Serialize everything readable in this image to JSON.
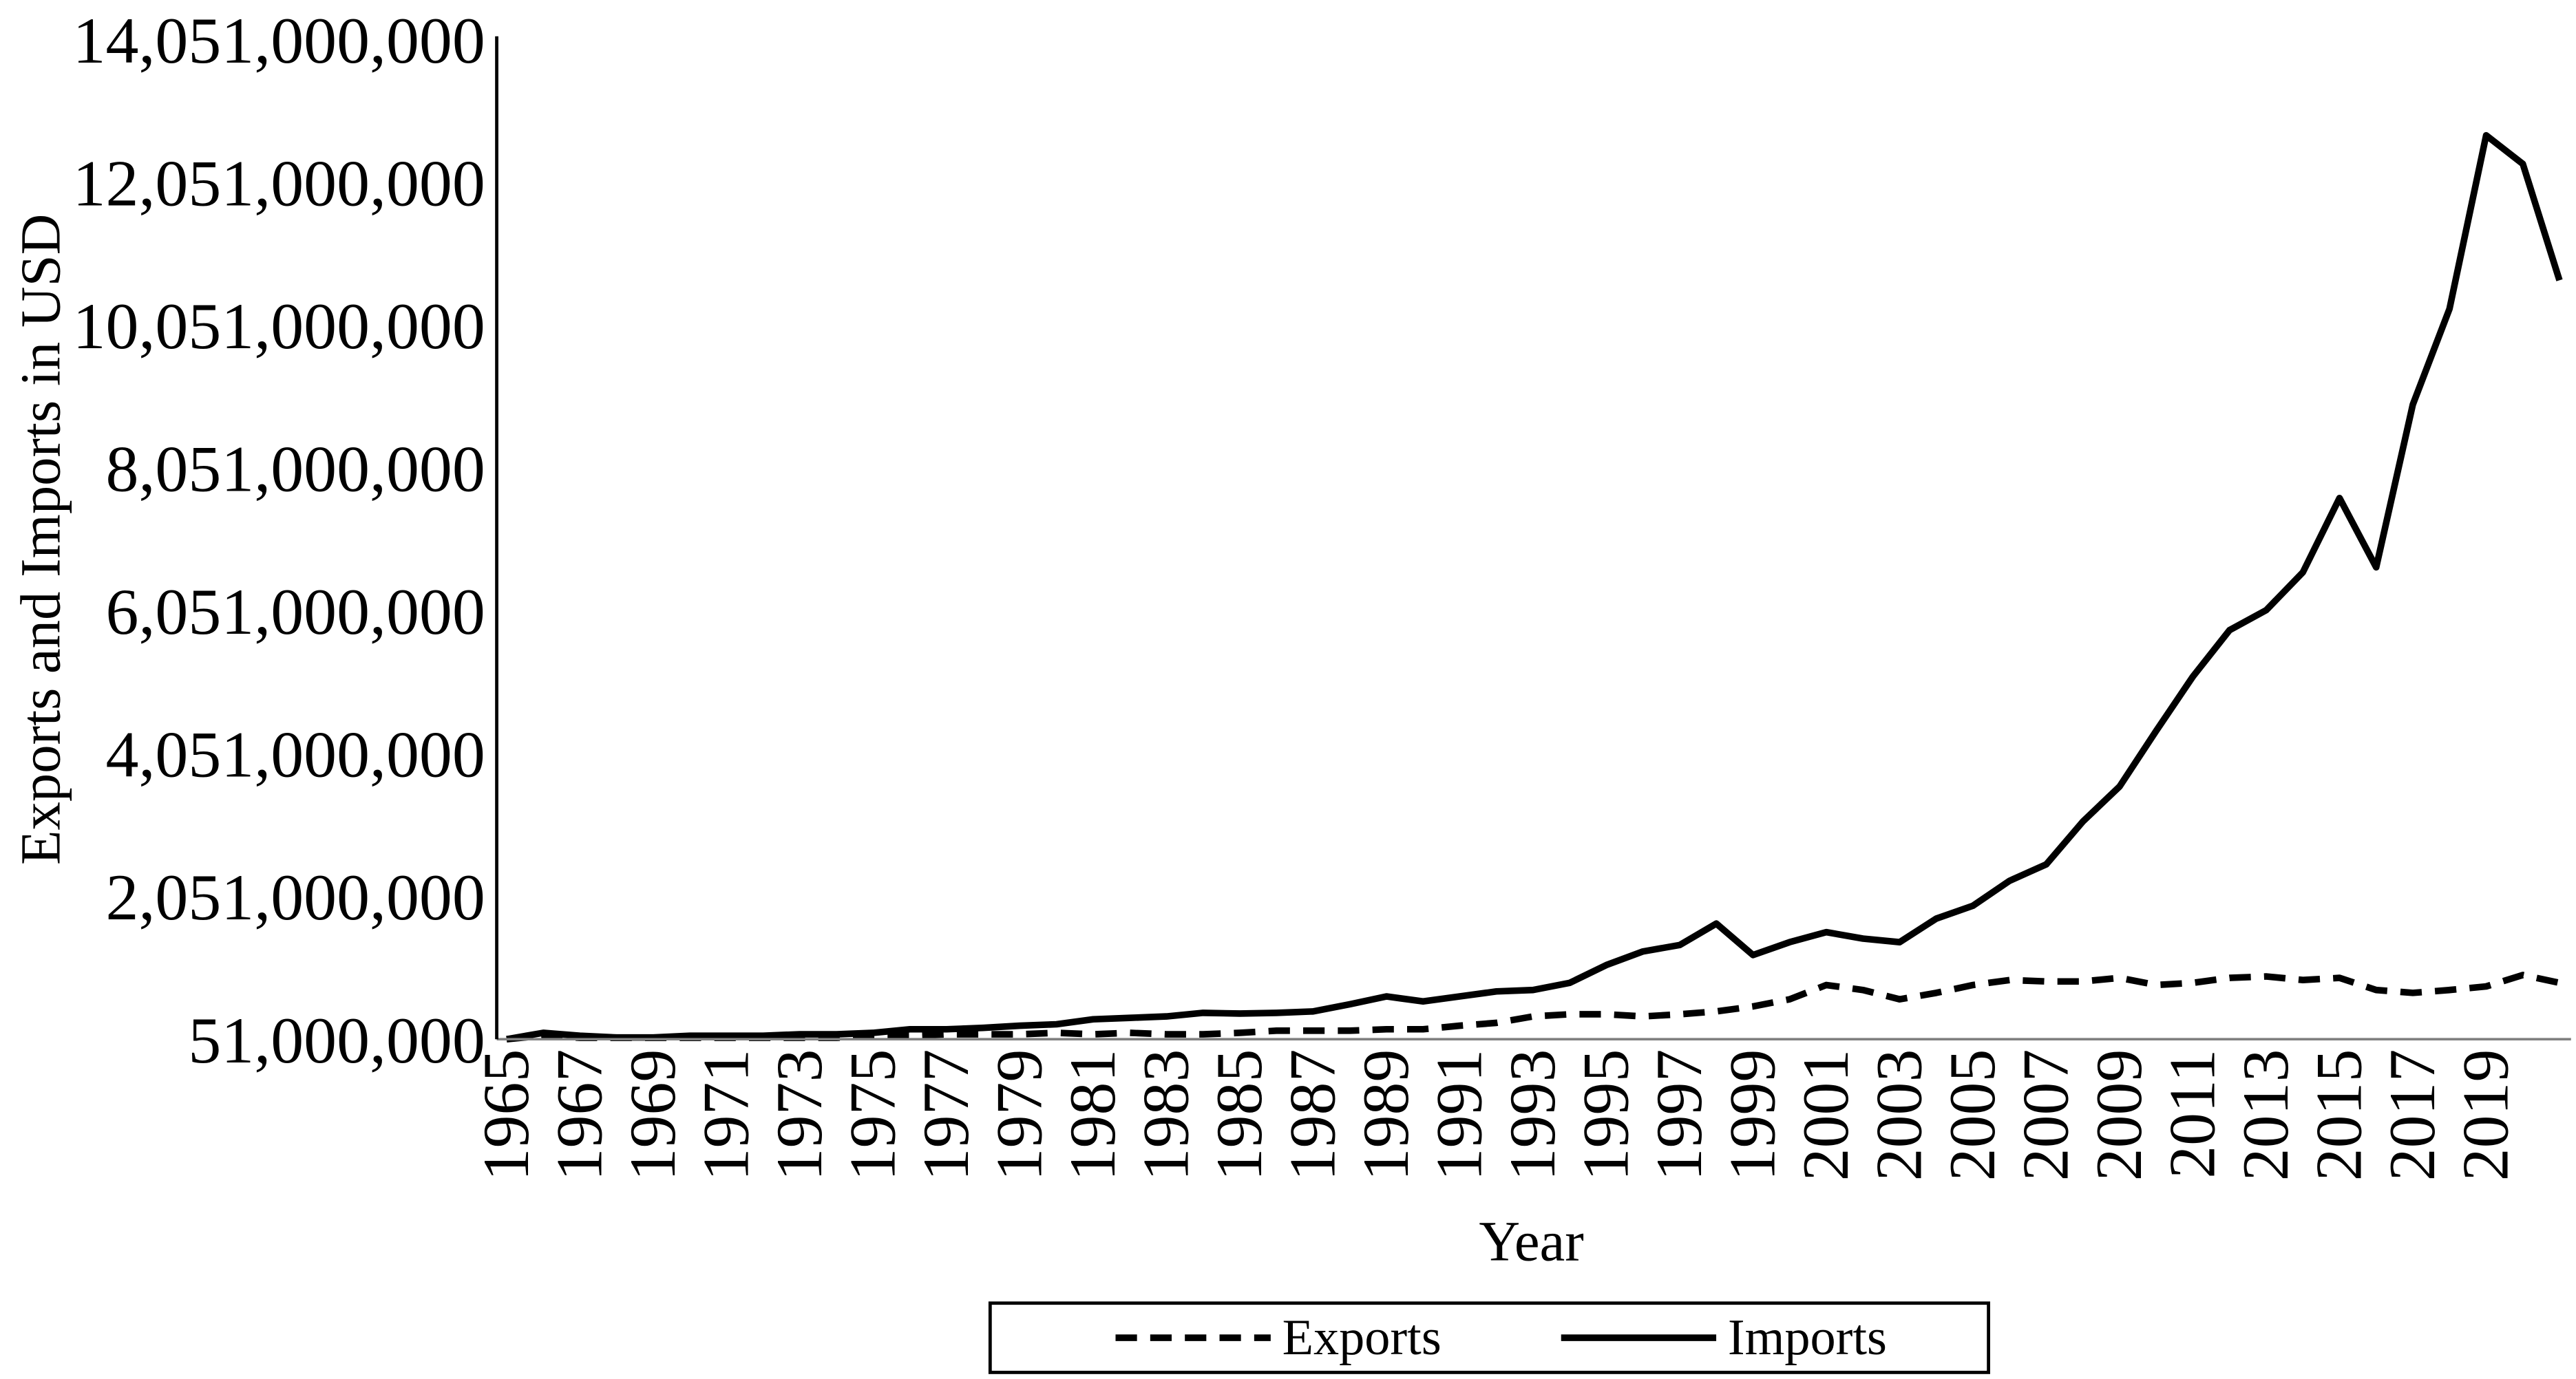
{
  "chart_data": {
    "type": "line",
    "xlabel": "Year",
    "ylabel": "Exports and Imports in USD",
    "ylim": [
      51000000,
      14051000000
    ],
    "grid": false,
    "legend": "bottom",
    "y_tick_labels": [
      "51,000,000",
      "2,051,000,000",
      "4,051,000,000",
      "6,051,000,000",
      "8,051,000,000",
      "10,051,000,000",
      "12,051,000,000",
      "14,051,000,000"
    ],
    "x_tick_labels": [
      "1965",
      "1967",
      "1969",
      "1971",
      "1973",
      "1975",
      "1977",
      "1979",
      "1981",
      "1983",
      "1985",
      "1987",
      "1989",
      "1991",
      "1993",
      "1995",
      "1997",
      "1999",
      "2001",
      "2003",
      "2005",
      "2007",
      "2009",
      "2011",
      "2013",
      "2015",
      "2017",
      "2019"
    ],
    "x": [
      1965,
      1966,
      1967,
      1968,
      1969,
      1970,
      1971,
      1972,
      1973,
      1974,
      1975,
      1976,
      1977,
      1978,
      1979,
      1980,
      1981,
      1982,
      1983,
      1984,
      1985,
      1986,
      1987,
      1988,
      1989,
      1990,
      1991,
      1992,
      1993,
      1994,
      1995,
      1996,
      1997,
      1998,
      1999,
      2000,
      2001,
      2002,
      2003,
      2004,
      2005,
      2006,
      2007,
      2008,
      2009,
      2010,
      2011,
      2012,
      2013,
      2014,
      2015,
      2016,
      2017,
      2018,
      2019,
      2020,
      2021
    ],
    "series": [
      {
        "name": "Exports",
        "line_style": "dashed",
        "color": "#000000",
        "values": [
          51000000,
          100000000,
          70000000,
          70000000,
          70000000,
          70000000,
          70000000,
          70000000,
          70000000,
          70000000,
          100000000,
          100000000,
          120000000,
          120000000,
          120000000,
          140000000,
          120000000,
          140000000,
          120000000,
          120000000,
          140000000,
          170000000,
          170000000,
          170000000,
          190000000,
          190000000,
          240000000,
          280000000,
          370000000,
          400000000,
          400000000,
          370000000,
          400000000,
          440000000,
          510000000,
          610000000,
          810000000,
          740000000,
          610000000,
          700000000,
          810000000,
          880000000,
          860000000,
          860000000,
          910000000,
          810000000,
          840000000,
          910000000,
          930000000,
          880000000,
          910000000,
          740000000,
          700000000,
          740000000,
          790000000,
          950000000,
          840000000
        ]
      },
      {
        "name": "Imports",
        "line_style": "solid",
        "color": "#000000",
        "values": [
          51000000,
          140000000,
          100000000,
          75000000,
          75000000,
          100000000,
          100000000,
          100000000,
          120000000,
          120000000,
          140000000,
          190000000,
          190000000,
          210000000,
          240000000,
          260000000,
          330000000,
          350000000,
          370000000,
          420000000,
          410000000,
          420000000,
          440000000,
          540000000,
          650000000,
          580000000,
          650000000,
          720000000,
          740000000,
          840000000,
          1090000000,
          1280000000,
          1370000000,
          1670000000,
          1230000000,
          1410000000,
          1550000000,
          1460000000,
          1410000000,
          1740000000,
          1920000000,
          2270000000,
          2500000000,
          3100000000,
          3590000000,
          4370000000,
          5130000000,
          5780000000,
          6060000000,
          6590000000,
          7630000000,
          6660000000,
          8940000000,
          10280000000,
          12710000000,
          12310000000,
          10680000000
        ]
      }
    ]
  },
  "axis_label_color": "#808080",
  "axis_line_color": "#000000",
  "x_axis_line_color": "#808080"
}
